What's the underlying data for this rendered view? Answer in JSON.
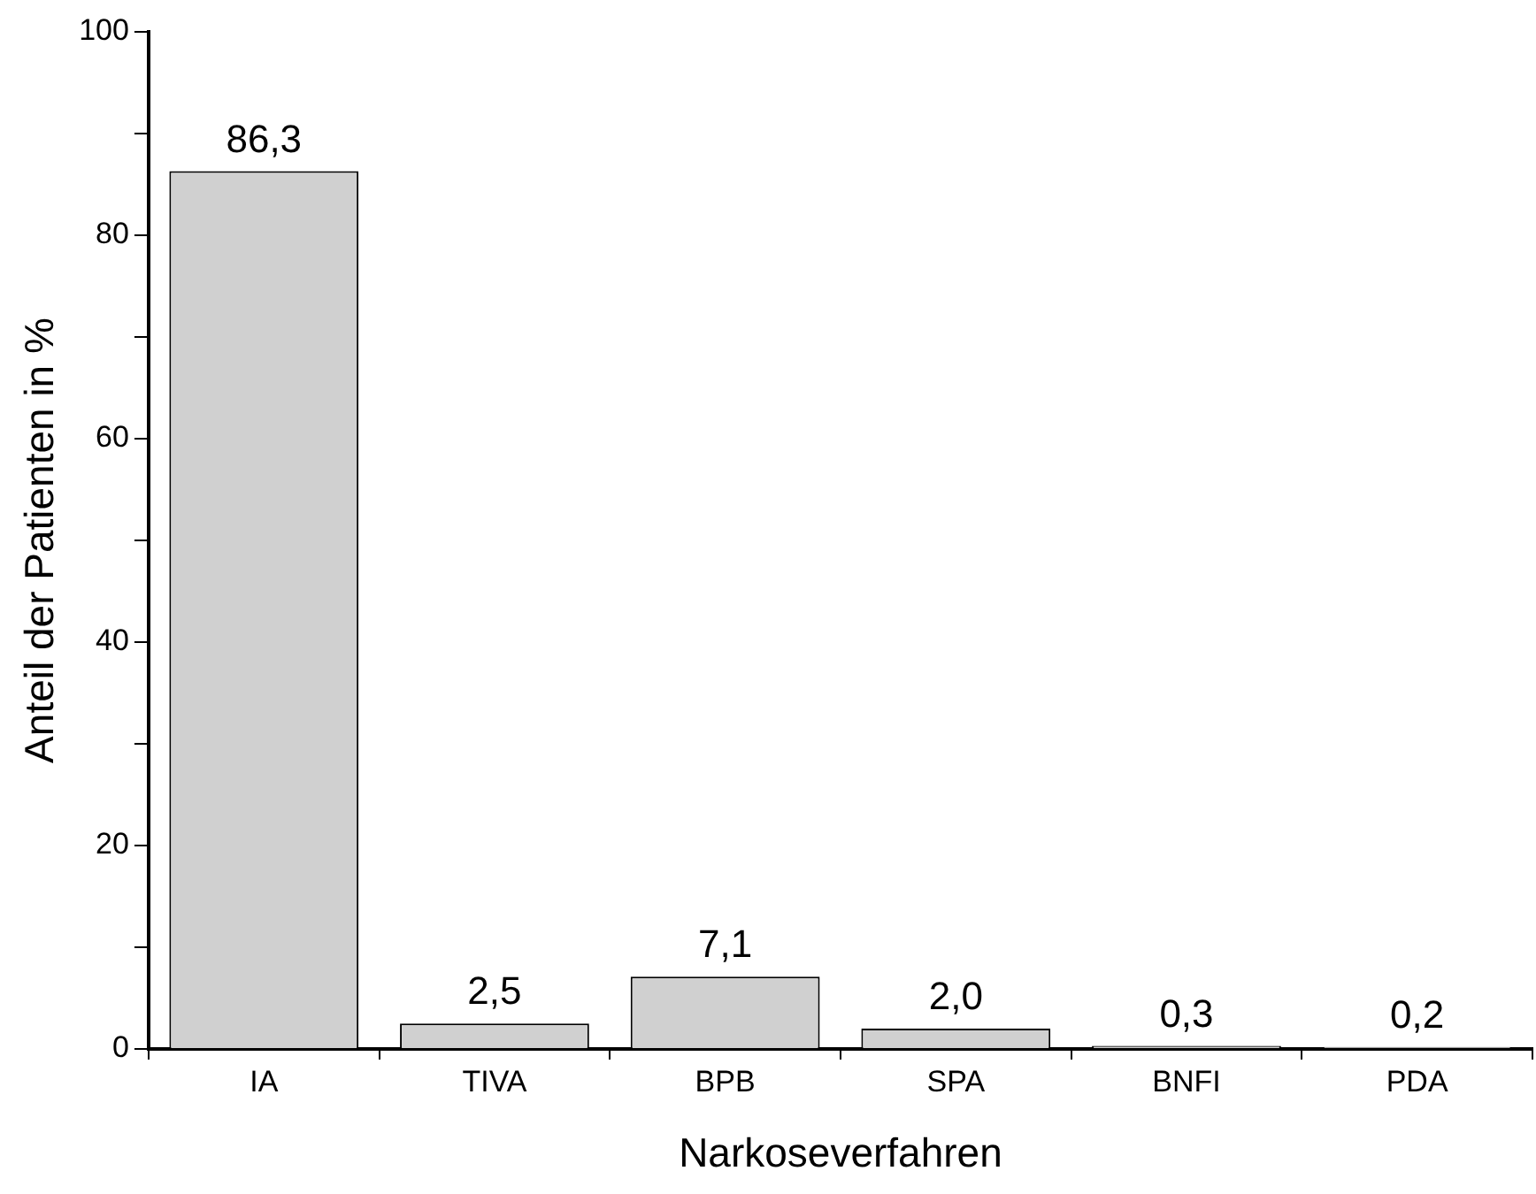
{
  "chart_data": {
    "type": "bar",
    "xlabel": "Narkoseverfahren",
    "ylabel": "Anteil der Patienten in %",
    "categories": [
      "IA",
      "TIVA",
      "BPB",
      "SPA",
      "BNFI",
      "PDA"
    ],
    "values": [
      86.3,
      2.5,
      7.1,
      2.0,
      0.3,
      0.2
    ],
    "value_labels": [
      "86,3",
      "2,5",
      "7,1",
      "2,0",
      "0,3",
      "0,2"
    ],
    "color": "#d0d0d0",
    "ylim": [
      0,
      100
    ],
    "yticks": [
      0,
      {
        "value": 10,
        "label": null
      },
      20,
      {
        "value": 30,
        "label": null
      },
      40,
      {
        "value": 50,
        "label": null
      },
      60,
      {
        "value": 70,
        "label": null
      },
      80,
      {
        "value": 90,
        "label": null
      },
      100
    ],
    "grid": false,
    "legend": false
  }
}
